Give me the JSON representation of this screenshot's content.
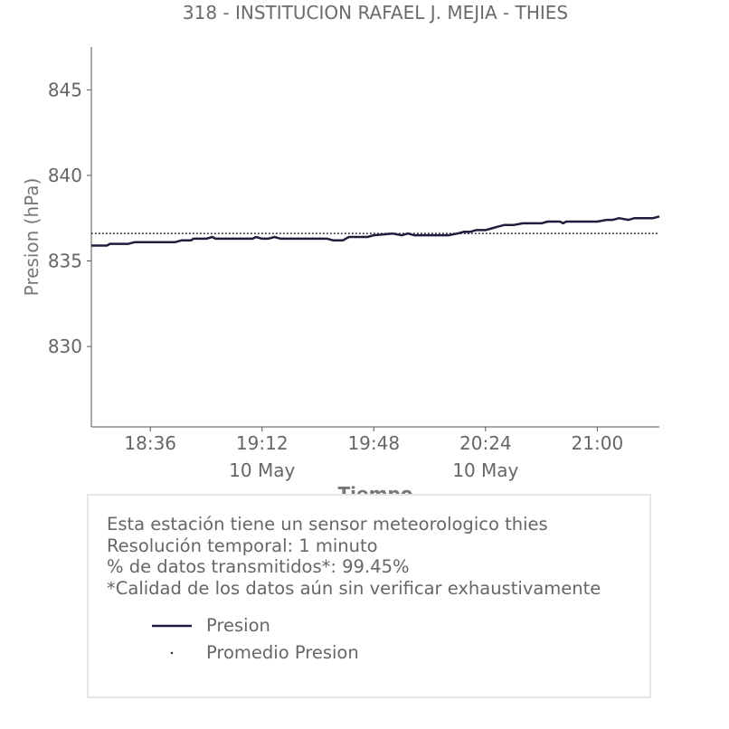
{
  "chart_data": {
    "type": "line",
    "title": "318 - INSTITUCION RAFAEL J. MEJIA - THIES",
    "xlabel": "Tiempo",
    "ylabel": "Presion (hPa)",
    "x_range": [
      "18:17",
      "21:20"
    ],
    "ylim": [
      825.3,
      847.5
    ],
    "y_ticks": [
      830,
      835,
      840,
      845
    ],
    "x_ticks": [
      {
        "time": "18:36",
        "label": "18:36",
        "date": ""
      },
      {
        "time": "19:12",
        "label": "19:12",
        "date": "10 May"
      },
      {
        "time": "19:48",
        "label": "19:48",
        "date": ""
      },
      {
        "time": "20:24",
        "label": "20:24",
        "date": "10 May"
      },
      {
        "time": "21:00",
        "label": "21:00",
        "date": ""
      }
    ],
    "series": [
      {
        "name": "Presion",
        "color": "#1f1f3d",
        "style": "solid",
        "points": [
          [
            "18:17",
            835.9
          ],
          [
            "18:22",
            835.9
          ],
          [
            "18:23",
            836.0
          ],
          [
            "18:29",
            836.0
          ],
          [
            "18:31",
            836.1
          ],
          [
            "18:44",
            836.1
          ],
          [
            "18:46",
            836.2
          ],
          [
            "18:49",
            836.2
          ],
          [
            "18:50",
            836.3
          ],
          [
            "18:54",
            836.3
          ],
          [
            "18:56",
            836.4
          ],
          [
            "18:57",
            836.3
          ],
          [
            "19:09",
            836.3
          ],
          [
            "19:10",
            836.4
          ],
          [
            "19:12",
            836.3
          ],
          [
            "19:14",
            836.3
          ],
          [
            "19:16",
            836.4
          ],
          [
            "19:18",
            836.3
          ],
          [
            "19:33",
            836.3
          ],
          [
            "19:35",
            836.2
          ],
          [
            "19:38",
            836.2
          ],
          [
            "19:40",
            836.4
          ],
          [
            "19:46",
            836.4
          ],
          [
            "19:48",
            836.5
          ],
          [
            "19:54",
            836.6
          ],
          [
            "19:57",
            836.5
          ],
          [
            "19:59",
            836.6
          ],
          [
            "20:01",
            836.5
          ],
          [
            "20:12",
            836.5
          ],
          [
            "20:15",
            836.6
          ],
          [
            "20:17",
            836.7
          ],
          [
            "20:19",
            836.7
          ],
          [
            "20:21",
            836.8
          ],
          [
            "20:24",
            836.8
          ],
          [
            "20:26",
            836.9
          ],
          [
            "20:28",
            837.0
          ],
          [
            "20:30",
            837.1
          ],
          [
            "20:33",
            837.1
          ],
          [
            "20:36",
            837.2
          ],
          [
            "20:42",
            837.2
          ],
          [
            "20:44",
            837.3
          ],
          [
            "20:48",
            837.3
          ],
          [
            "20:49",
            837.2
          ],
          [
            "20:50",
            837.3
          ],
          [
            "21:00",
            837.3
          ],
          [
            "21:03",
            837.4
          ],
          [
            "21:05",
            837.4
          ],
          [
            "21:07",
            837.5
          ],
          [
            "21:10",
            837.4
          ],
          [
            "21:12",
            837.5
          ],
          [
            "21:18",
            837.5
          ],
          [
            "21:20",
            837.6
          ]
        ]
      },
      {
        "name": "Promedio Presion",
        "color": "#1f1f3d",
        "style": "dotted",
        "value": 836.6
      }
    ],
    "grid": false,
    "legend_placement": "bottom"
  },
  "info": {
    "line1": "Esta estación tiene un sensor meteorologico thies",
    "line2": "Resolución temporal: 1 minuto",
    "line3": "% de datos transmitidos*: 99.45%",
    "line4": "*Calidad de los datos aún sin verificar exhaustivamente"
  }
}
